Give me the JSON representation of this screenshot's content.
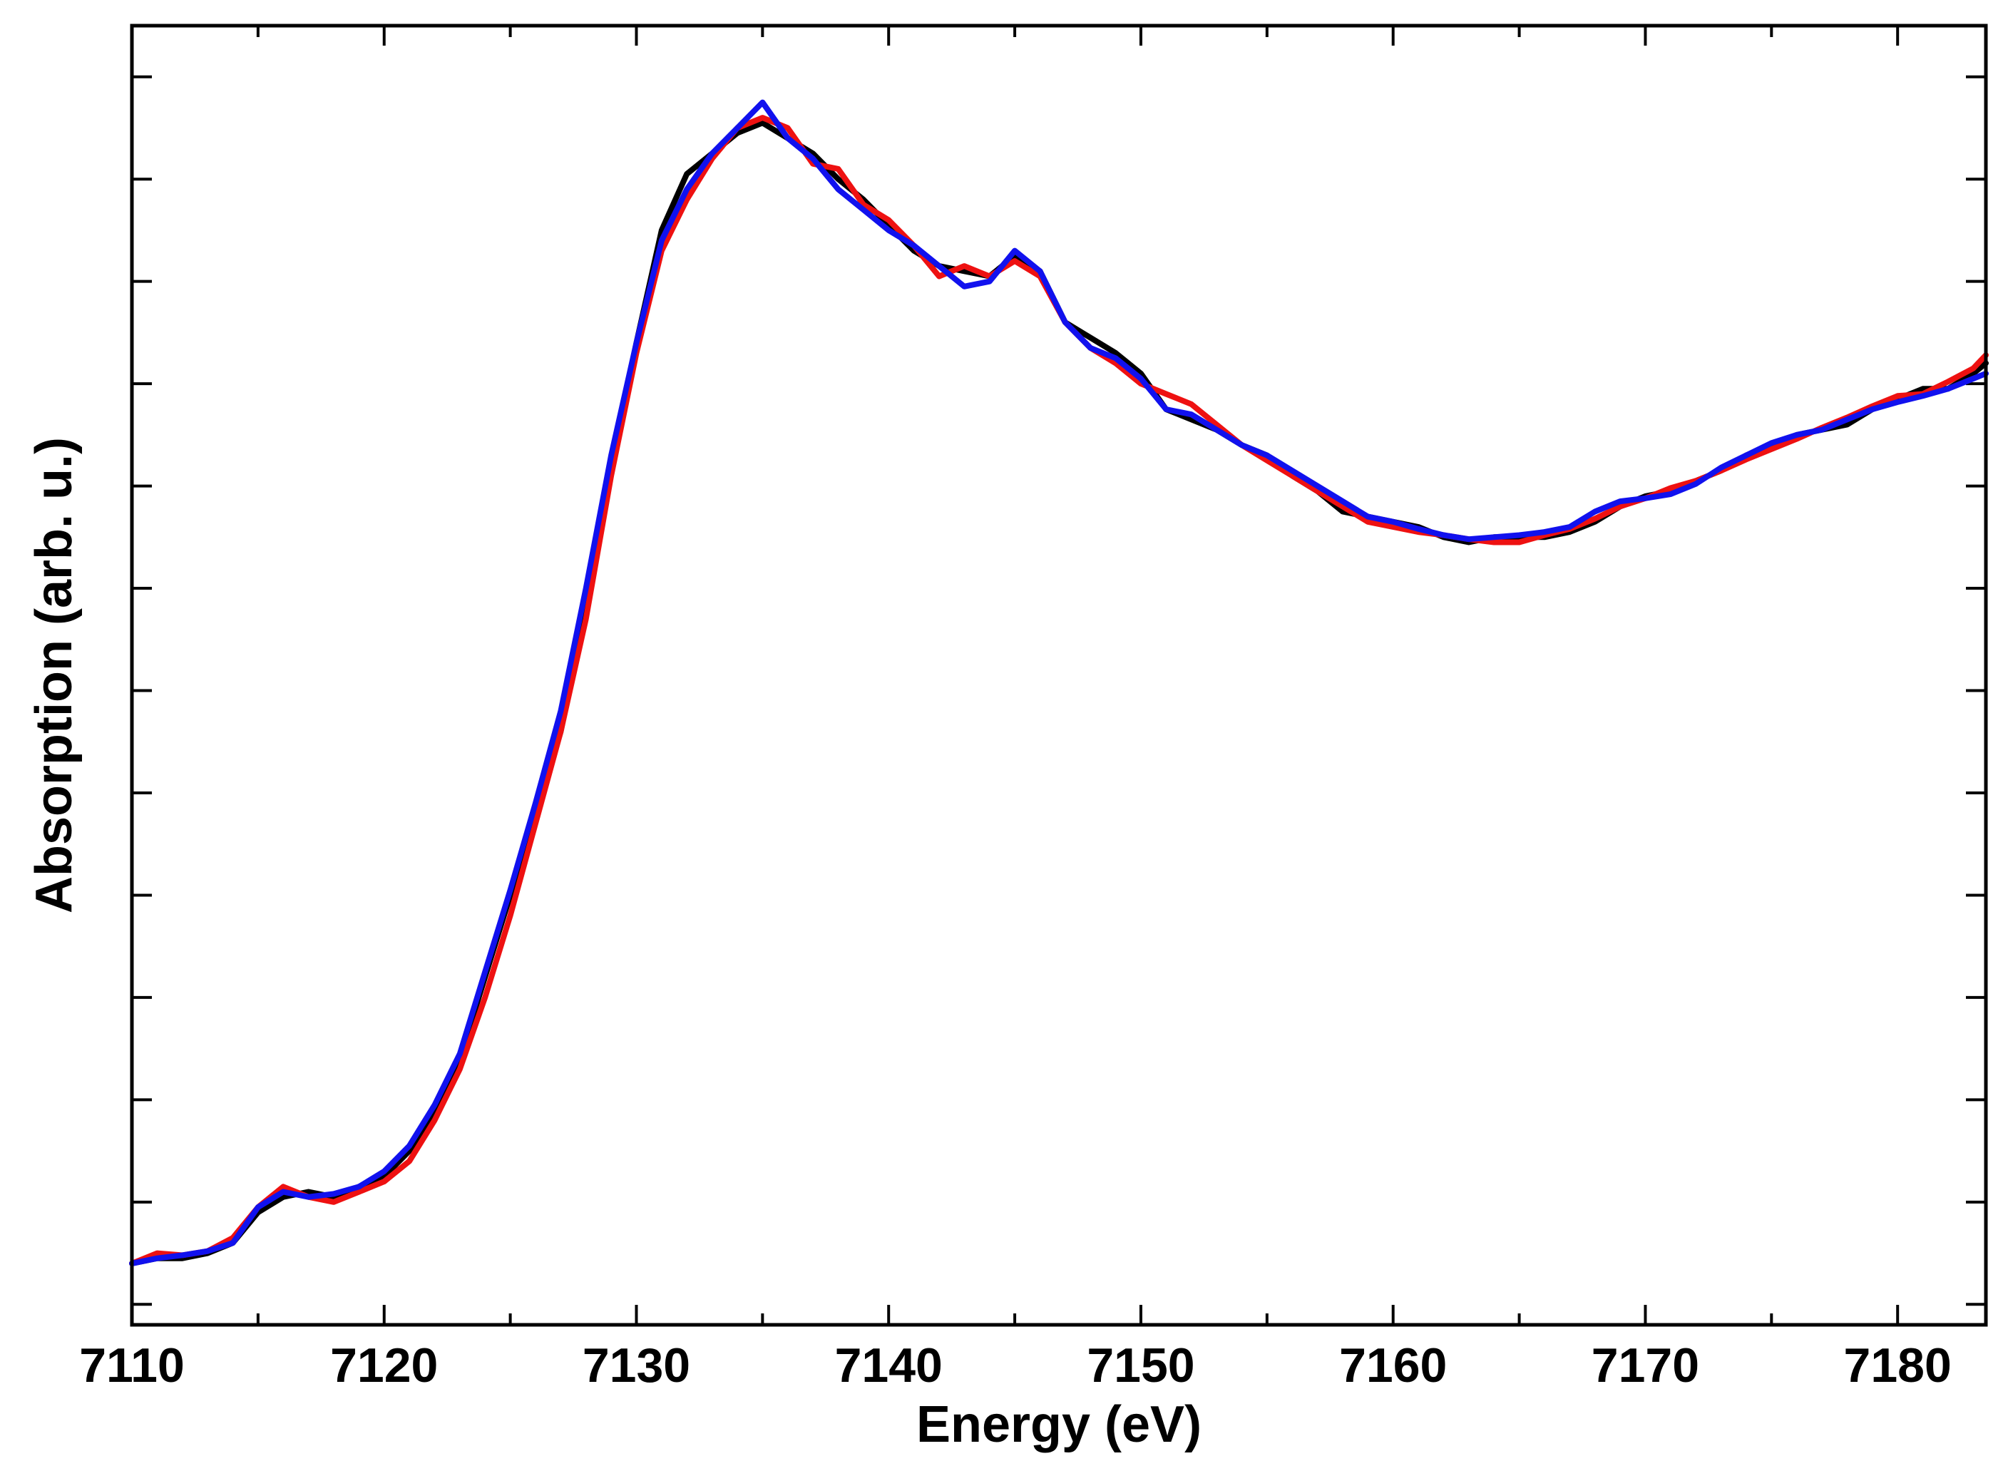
{
  "chart_data": {
    "type": "line",
    "xlabel": "Energy (eV)",
    "ylabel": "Absorption (arb. u.)",
    "xlim": [
      7110,
      7183.5
    ],
    "ylim": [
      -0.06,
      1.21
    ],
    "grid": false,
    "legend": "none",
    "x_ticks": [
      7110,
      7120,
      7130,
      7140,
      7150,
      7160,
      7170,
      7180
    ],
    "x_tick_labels": [
      "7110",
      "7120",
      "7130",
      "7140",
      "7150",
      "7160",
      "7170",
      "7180"
    ],
    "x_minor_step": 5,
    "y_ticks": [
      -0.04,
      0.06,
      0.16,
      0.26,
      0.36,
      0.46,
      0.56,
      0.66,
      0.76,
      0.86,
      0.96,
      1.06,
      1.16
    ],
    "colors": {
      "black": "#000000",
      "red": "#ee1111",
      "blue": "#1111ee"
    },
    "series": [
      {
        "color": "#000000",
        "x": [
          7110,
          7111,
          7112,
          7113,
          7114,
          7115,
          7116,
          7117,
          7118,
          7119,
          7120,
          7121,
          7122,
          7123,
          7124,
          7125,
          7126,
          7127,
          7128,
          7129,
          7130,
          7131,
          7132,
          7133,
          7134,
          7135,
          7136,
          7137,
          7138,
          7139,
          7140,
          7141,
          7142,
          7143,
          7144,
          7145,
          7146,
          7147,
          7148,
          7149,
          7150,
          7151,
          7152,
          7153,
          7154,
          7155,
          7156,
          7157,
          7158,
          7159,
          7160,
          7161,
          7162,
          7163,
          7164,
          7165,
          7166,
          7167,
          7168,
          7169,
          7170,
          7171,
          7172,
          7173,
          7174,
          7175,
          7176,
          7177,
          7178,
          7179,
          7180,
          7181,
          7182,
          7183,
          7183.5
        ],
        "y": [
          0.0,
          0.005,
          0.005,
          0.01,
          0.02,
          0.05,
          0.065,
          0.07,
          0.065,
          0.075,
          0.085,
          0.11,
          0.15,
          0.2,
          0.28,
          0.36,
          0.44,
          0.52,
          0.64,
          0.78,
          0.9,
          1.01,
          1.065,
          1.085,
          1.105,
          1.115,
          1.1,
          1.085,
          1.06,
          1.04,
          1.015,
          0.99,
          0.975,
          0.97,
          0.965,
          0.985,
          0.97,
          0.92,
          0.905,
          0.89,
          0.87,
          0.835,
          0.825,
          0.815,
          0.8,
          0.79,
          0.77,
          0.755,
          0.735,
          0.73,
          0.725,
          0.72,
          0.71,
          0.705,
          0.71,
          0.71,
          0.71,
          0.715,
          0.725,
          0.74,
          0.75,
          0.755,
          0.765,
          0.775,
          0.79,
          0.8,
          0.81,
          0.815,
          0.82,
          0.835,
          0.845,
          0.855,
          0.855,
          0.87,
          0.88
        ]
      },
      {
        "color": "#ee1111",
        "x": [
          7110,
          7111,
          7112,
          7113,
          7114,
          7115,
          7116,
          7117,
          7118,
          7119,
          7120,
          7121,
          7122,
          7123,
          7124,
          7125,
          7126,
          7127,
          7128,
          7129,
          7130,
          7131,
          7132,
          7133,
          7134,
          7135,
          7136,
          7137,
          7138,
          7139,
          7140,
          7141,
          7142,
          7143,
          7144,
          7145,
          7146,
          7147,
          7148,
          7149,
          7150,
          7151,
          7152,
          7153,
          7154,
          7155,
          7156,
          7157,
          7158,
          7159,
          7160,
          7161,
          7162,
          7163,
          7164,
          7165,
          7166,
          7167,
          7168,
          7169,
          7170,
          7171,
          7172,
          7173,
          7174,
          7175,
          7176,
          7177,
          7178,
          7179,
          7180,
          7181,
          7182,
          7183,
          7183.5
        ],
        "y": [
          0.0,
          0.01,
          0.008,
          0.012,
          0.025,
          0.055,
          0.075,
          0.065,
          0.06,
          0.07,
          0.08,
          0.1,
          0.14,
          0.19,
          0.26,
          0.34,
          0.43,
          0.52,
          0.63,
          0.77,
          0.89,
          0.99,
          1.04,
          1.08,
          1.11,
          1.12,
          1.11,
          1.075,
          1.07,
          1.035,
          1.02,
          0.995,
          0.965,
          0.975,
          0.965,
          0.98,
          0.965,
          0.92,
          0.895,
          0.88,
          0.86,
          0.85,
          0.84,
          0.82,
          0.8,
          0.785,
          0.77,
          0.755,
          0.74,
          0.725,
          0.72,
          0.715,
          0.712,
          0.708,
          0.705,
          0.705,
          0.712,
          0.718,
          0.728,
          0.74,
          0.748,
          0.758,
          0.765,
          0.775,
          0.786,
          0.796,
          0.806,
          0.817,
          0.827,
          0.838,
          0.848,
          0.85,
          0.862,
          0.875,
          0.888
        ]
      },
      {
        "color": "#1111ee",
        "x": [
          7110,
          7111,
          7112,
          7113,
          7114,
          7115,
          7116,
          7117,
          7118,
          7119,
          7120,
          7121,
          7122,
          7123,
          7124,
          7125,
          7126,
          7127,
          7128,
          7129,
          7130,
          7131,
          7132,
          7133,
          7134,
          7135,
          7136,
          7137,
          7138,
          7139,
          7140,
          7141,
          7142,
          7143,
          7144,
          7145,
          7146,
          7147,
          7148,
          7149,
          7150,
          7151,
          7152,
          7153,
          7154,
          7155,
          7156,
          7157,
          7158,
          7159,
          7160,
          7161,
          7162,
          7163,
          7164,
          7165,
          7166,
          7167,
          7168,
          7169,
          7170,
          7171,
          7172,
          7173,
          7174,
          7175,
          7176,
          7177,
          7178,
          7179,
          7180,
          7181,
          7182,
          7183,
          7183.5
        ],
        "y": [
          0.0,
          0.005,
          0.008,
          0.012,
          0.02,
          0.055,
          0.07,
          0.065,
          0.068,
          0.075,
          0.09,
          0.115,
          0.155,
          0.205,
          0.285,
          0.365,
          0.45,
          0.54,
          0.66,
          0.79,
          0.9,
          1.0,
          1.05,
          1.085,
          1.11,
          1.135,
          1.1,
          1.08,
          1.05,
          1.03,
          1.01,
          0.995,
          0.975,
          0.955,
          0.96,
          0.99,
          0.97,
          0.92,
          0.895,
          0.885,
          0.865,
          0.835,
          0.83,
          0.815,
          0.8,
          0.79,
          0.775,
          0.76,
          0.745,
          0.73,
          0.725,
          0.718,
          0.712,
          0.708,
          0.71,
          0.712,
          0.715,
          0.72,
          0.735,
          0.745,
          0.748,
          0.752,
          0.762,
          0.778,
          0.79,
          0.802,
          0.81,
          0.815,
          0.825,
          0.835,
          0.842,
          0.848,
          0.855,
          0.865,
          0.87
        ]
      }
    ]
  }
}
